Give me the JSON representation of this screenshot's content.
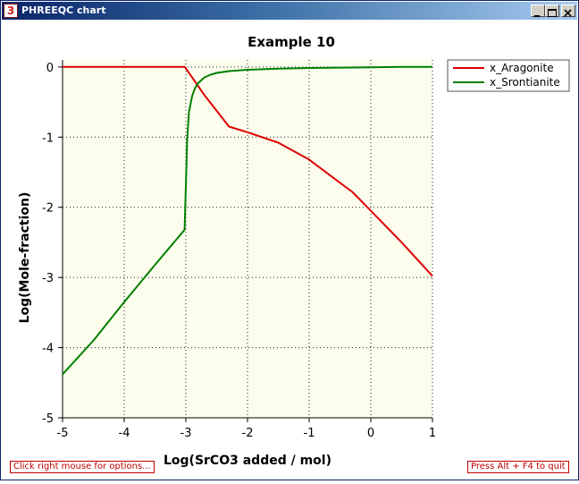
{
  "window": {
    "title": "PHREEQC chart",
    "icon_name": "phreeqc-app-icon",
    "icon_glyph": "3"
  },
  "footer": {
    "left_hint": "Click right mouse for options...",
    "right_hint": "Press Alt + F4 to quit"
  },
  "colors": {
    "x_Aragonite": "#dd0000",
    "x_Srontianite": "#008000",
    "plot_background": "#fcfded"
  },
  "chart_data": {
    "type": "line",
    "title": "Example 10",
    "xlabel": "Log(SrCO3 added / mol)",
    "ylabel": "Log(Mole-fraction)",
    "xlim": [
      -5,
      1
    ],
    "ylim": [
      -5,
      0.1
    ],
    "xticks": [
      -5,
      -4,
      -3,
      -2,
      -1,
      0,
      1
    ],
    "yticks": [
      0,
      -1,
      -2,
      -3,
      -4,
      -5
    ],
    "grid": true,
    "legend_position": "top-right outside plot",
    "series": [
      {
        "name": "x_Aragonite",
        "x": [
          -5,
          -4,
          -3.02,
          -3.0,
          -2.7,
          -2.3,
          -2.0,
          -1.5,
          -1.0,
          -0.5,
          -0.3,
          0.0,
          0.5,
          1.0
        ],
        "y": [
          0,
          0,
          0,
          -0.02,
          -0.4,
          -0.85,
          -0.93,
          -1.08,
          -1.32,
          -1.65,
          -1.78,
          -2.05,
          -2.5,
          -2.98
        ]
      },
      {
        "name": "x_Srontianite",
        "x": [
          -5,
          -4.5,
          -4.0,
          -3.5,
          -3.02,
          -3.0,
          -2.98,
          -2.95,
          -2.9,
          -2.85,
          -2.8,
          -2.7,
          -2.6,
          -2.5,
          -2.3,
          -2.0,
          -1.5,
          -1.0,
          -0.5,
          0.0,
          0.5,
          1.0
        ],
        "y": [
          -4.38,
          -3.9,
          -3.35,
          -2.82,
          -2.32,
          -1.7,
          -1.05,
          -0.65,
          -0.42,
          -0.3,
          -0.23,
          -0.15,
          -0.11,
          -0.085,
          -0.06,
          -0.04,
          -0.025,
          -0.015,
          -0.01,
          -0.005,
          0.0,
          0.0
        ]
      }
    ]
  }
}
